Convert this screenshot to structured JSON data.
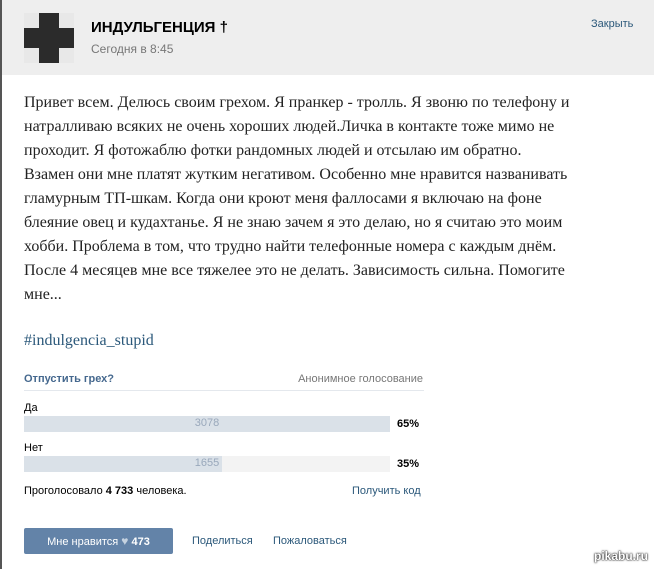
{
  "header": {
    "title": "ИНДУЛЬГЕНЦИЯ †",
    "date": "Сегодня в 8:45",
    "close_label": "Закрыть",
    "avatar_icon": "cross-icon"
  },
  "post": {
    "lines": [
      "Привет всем. Делюсь своим грехом. Я пранкер - тролль. Я звоню по телефону и",
      "натралливаю всяких не очень хороших людей.Личка в контакте тоже мимо не",
      "проходит. Я фотожаблю фотки рандомных людей и отсылаю им обратно.",
      "Взамен они мне платят жутким негативом. Особенно мне нравится названивать",
      "гламурным ТП-шкам. Когда они кроют меня фаллосами я включаю на фоне",
      "блеяние овец и кудахтанье. Я не знаю зачем я это делаю, но я считаю это моим",
      "хобби. Проблема в том, что трудно найти телефонные номера с каждым днём.",
      "После 4 месяцев мне все тяжелее это не делать. Зависимость сильна. Помогите",
      "мне..."
    ],
    "hashtag": "#indulgencia_stupid"
  },
  "poll": {
    "question": "Отпустить грех?",
    "type": "Анонимное голосование",
    "options": [
      {
        "label": "Да",
        "votes": "3078",
        "percent": "65%",
        "fill": 1.0
      },
      {
        "label": "Нет",
        "votes": "1655",
        "percent": "35%",
        "fill": 0.54
      }
    ],
    "voted_prefix": "Проголосовало",
    "voted_total": "4 733",
    "voted_suffix": "человека.",
    "get_code": "Получить код"
  },
  "actions": {
    "like_label": "Мне нравится",
    "like_icon": "heart-icon",
    "like_count": "473",
    "share": "Поделиться",
    "report": "Пожаловаться"
  },
  "watermark": "pikabu.ru"
}
